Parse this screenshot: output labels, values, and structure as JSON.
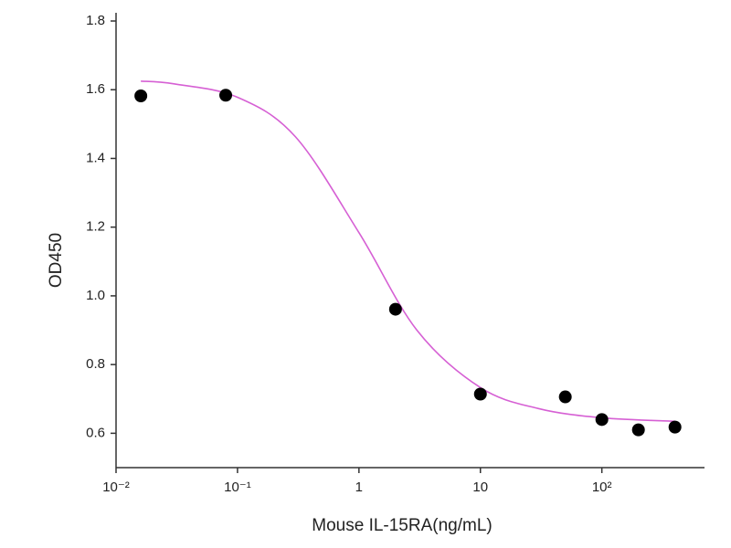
{
  "chart_data": {
    "type": "scatter",
    "x_label": "Mouse IL-15RA(ng/mL)",
    "y_label": "OD450",
    "xscale": "log",
    "x": [
      0.016,
      0.08,
      2,
      10,
      50,
      100,
      200,
      400
    ],
    "values": [
      1.582,
      1.584,
      0.961,
      0.714,
      0.706,
      0.64,
      0.61,
      0.618
    ],
    "color": "#000000",
    "fit": {
      "x": [
        0.016,
        0.03,
        0.1,
        0.3,
        1,
        3,
        10,
        30,
        100,
        400
      ],
      "values": [
        1.625,
        1.617,
        1.578,
        1.463,
        1.184,
        0.9,
        0.733,
        0.672,
        0.645,
        0.635
      ],
      "color": "#d660d4"
    },
    "xlim": [
      0.01,
      700
    ],
    "ylim": [
      0.5,
      1.8
    ],
    "xticks": [
      {
        "value": 0.01,
        "label": "10⁻²"
      },
      {
        "value": 0.1,
        "label": "10⁻¹"
      },
      1,
      10,
      {
        "value": 100,
        "label": "10²"
      }
    ],
    "yticks": [
      0.6,
      0.8,
      {
        "value": 1,
        "label": "1.0"
      },
      1.2,
      1.4,
      1.6,
      1.8
    ]
  }
}
